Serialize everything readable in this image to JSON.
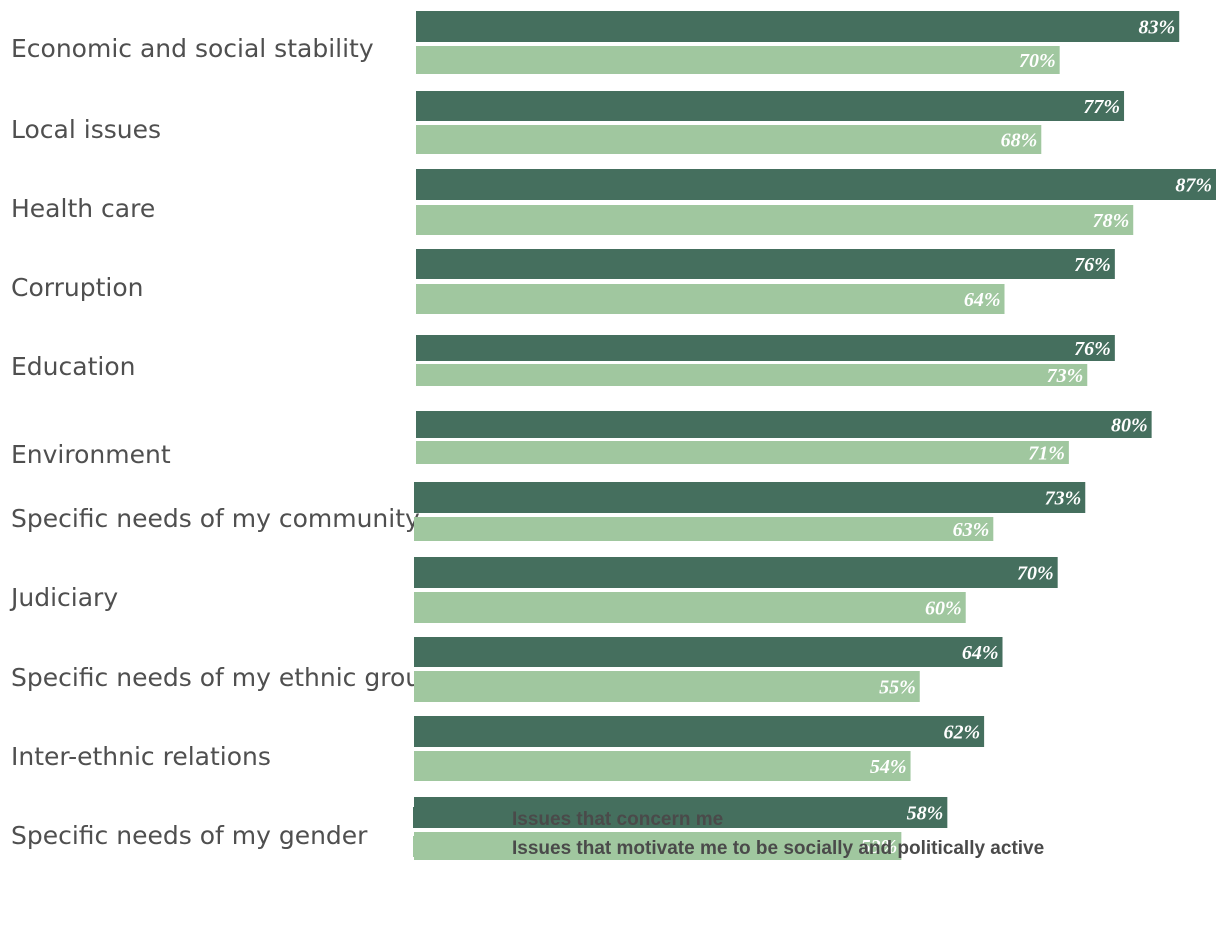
{
  "chart_data": {
    "type": "bar",
    "orientation": "horizontal",
    "categories": [
      "Economic and social stability",
      "Local issues",
      "Health care",
      "Corruption",
      "Education",
      "Environment",
      "Specific needs of my community",
      "Judiciary",
      "Specific needs of my ethnic group",
      "Inter-ethnic relations",
      "Specific needs of my gender"
    ],
    "series": [
      {
        "name": "Issues that concern me",
        "color": "#456f5e",
        "values": [
          83,
          77,
          87,
          76,
          76,
          80,
          73,
          70,
          64,
          62,
          58
        ],
        "labels": [
          "83%",
          "77%",
          "87%",
          "76%",
          "76%",
          "80%",
          "73%",
          "70%",
          "64%",
          "62%",
          "58%"
        ]
      },
      {
        "name": "Issues that motivate me to be socially and politically active",
        "color": "#a0c79f",
        "values": [
          70,
          68,
          78,
          64,
          73,
          71,
          63,
          60,
          55,
          54,
          53
        ],
        "labels": [
          "70%",
          "68%",
          "78%",
          "64%",
          "73%",
          "71%",
          "63%",
          "60%",
          "55%",
          "54%",
          "53%"
        ]
      }
    ],
    "xlim": [
      0,
      87
    ],
    "grid": false,
    "legend_position": "bottom"
  }
}
